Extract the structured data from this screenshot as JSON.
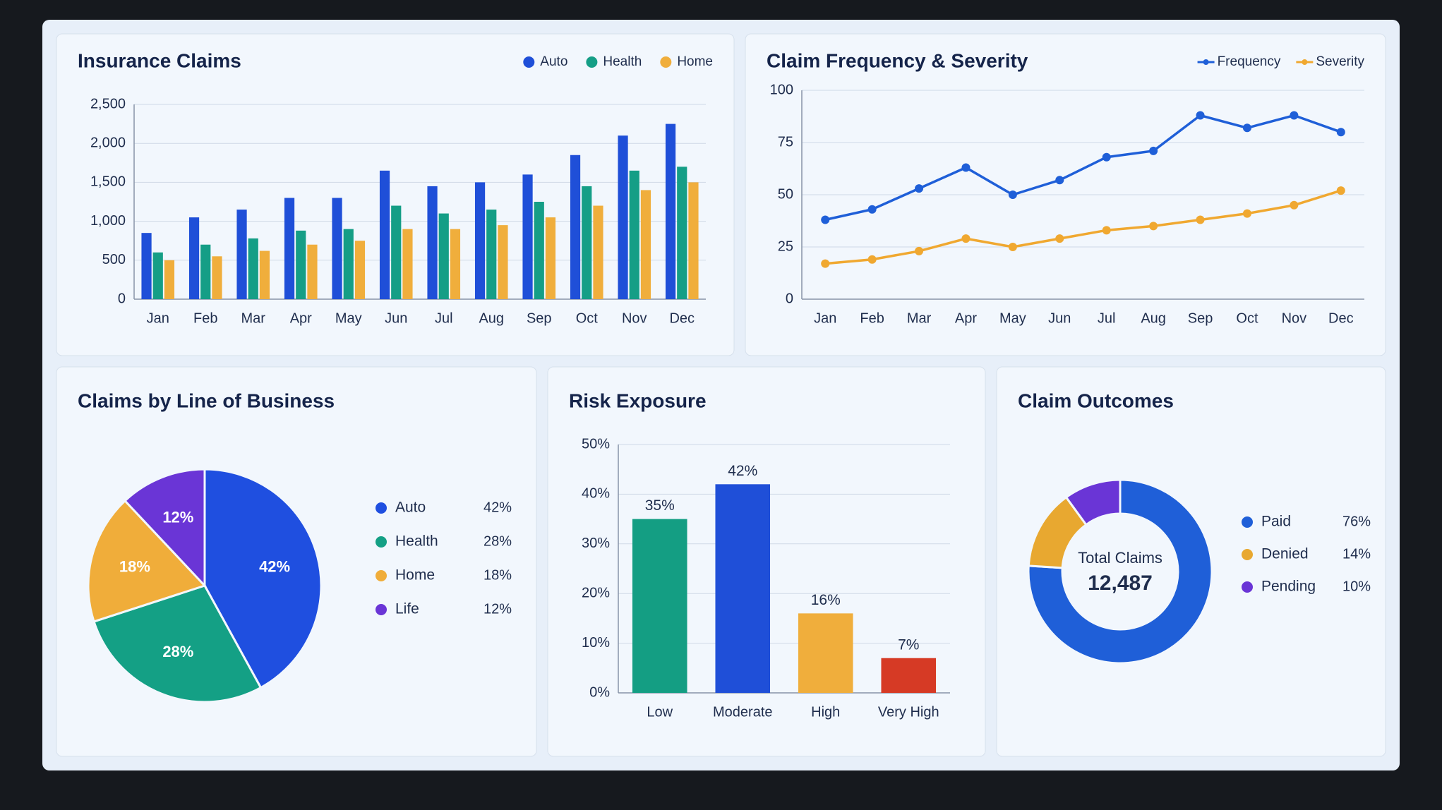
{
  "chart_data": [
    {
      "type": "bar",
      "title": "Insurance Claims",
      "categories": [
        "Jan",
        "Feb",
        "Mar",
        "Apr",
        "May",
        "Jun",
        "Jul",
        "Aug",
        "Sep",
        "Oct",
        "Nov",
        "Dec"
      ],
      "series": [
        {
          "name": "Auto",
          "color": "#1f4fd8",
          "values": [
            850,
            1050,
            1150,
            1300,
            1300,
            1650,
            1450,
            1500,
            1600,
            1850,
            2100,
            2250
          ]
        },
        {
          "name": "Health",
          "color": "#159e86",
          "values": [
            600,
            700,
            780,
            880,
            900,
            1200,
            1100,
            1150,
            1250,
            1450,
            1650,
            1700
          ]
        },
        {
          "name": "Home",
          "color": "#f0ae3c",
          "values": [
            500,
            550,
            620,
            700,
            750,
            900,
            900,
            950,
            1050,
            1200,
            1400,
            1500
          ]
        }
      ],
      "ylim": [
        0,
        2500
      ],
      "yticks": [
        0,
        500,
        {
          "value": 1000,
          "label": "1,000"
        },
        {
          "value": 1500,
          "label": "1,500"
        },
        {
          "value": 2000,
          "label": "2,000"
        },
        {
          "value": 2500,
          "label": "2,500"
        }
      ],
      "grid": true,
      "legend": "top-right"
    },
    {
      "type": "line",
      "title": "Claim Frequency & Severity",
      "categories": [
        "Jan",
        "Feb",
        "Mar",
        "Apr",
        "May",
        "Jun",
        "Jul",
        "Aug",
        "Sep",
        "Oct",
        "Nov",
        "Dec"
      ],
      "series": [
        {
          "name": "Frequency",
          "color": "#1f5fd8",
          "values": [
            38,
            43,
            53,
            63,
            50,
            57,
            68,
            71,
            88,
            82,
            88,
            80
          ]
        },
        {
          "name": "Severity",
          "color": "#f0a830",
          "values": [
            17,
            19,
            23,
            29,
            25,
            29,
            33,
            35,
            38,
            41,
            45,
            52
          ]
        }
      ],
      "ylim": [
        0,
        100
      ],
      "yticks": [
        0,
        25,
        50,
        75,
        100
      ],
      "grid": true,
      "legend": "top-right"
    },
    {
      "type": "pie",
      "title": "Claims by Line of Business",
      "categories": [
        "Auto",
        "Health",
        "Home",
        "Life"
      ],
      "values": [
        42,
        28,
        18,
        12
      ],
      "value_labels": [
        "42%",
        "28%",
        "18%",
        "12%"
      ],
      "colors": [
        "#1f4fe0",
        "#14a085",
        "#f0ad3a",
        "#6a35d6"
      ],
      "legend": "right"
    },
    {
      "type": "bar",
      "title": "Risk Exposure",
      "categories": [
        "Low",
        "Moderate",
        "High",
        "Very High"
      ],
      "values": [
        35,
        42,
        16,
        7
      ],
      "value_labels": [
        "35%",
        "42%",
        "16%",
        "7%"
      ],
      "colors": [
        "#149e83",
        "#1f4fd8",
        "#f0ae3c",
        "#d63a25"
      ],
      "ylim": [
        0,
        50
      ],
      "yticks": [
        {
          "value": 0,
          "label": "0%"
        },
        {
          "value": 10,
          "label": "10%"
        },
        {
          "value": 20,
          "label": "20%"
        },
        {
          "value": 30,
          "label": "30%"
        },
        {
          "value": 40,
          "label": "40%"
        },
        {
          "value": 50,
          "label": "50%"
        }
      ],
      "grid": true
    },
    {
      "type": "donut",
      "title": "Claim Outcomes",
      "categories": [
        "Paid",
        "Denied",
        "Pending"
      ],
      "values": [
        76,
        14,
        10
      ],
      "value_labels": [
        "76%",
        "14%",
        "10%"
      ],
      "colors": [
        "#1f5fd8",
        "#e8a830",
        "#6a35d6"
      ],
      "center_label": "Total Claims",
      "total": 12487,
      "total_label": "12,487",
      "legend": "right"
    }
  ]
}
